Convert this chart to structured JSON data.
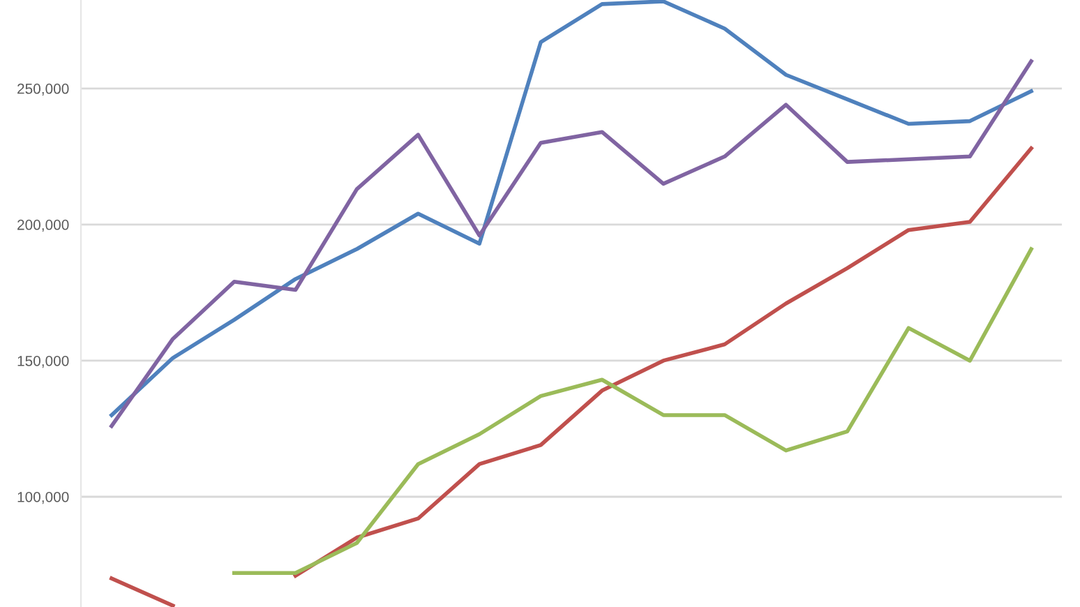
{
  "chart_data": {
    "type": "line",
    "categories": [
      null,
      null,
      null,
      null,
      null,
      null,
      null,
      null,
      null,
      null,
      null,
      null,
      null,
      null,
      null,
      null
    ],
    "series": [
      {
        "color": "#4f81bd",
        "values": [
          130000,
          151000,
          165000,
          180000,
          191000,
          204000,
          193000,
          267000,
          281000,
          282000,
          272000,
          255000,
          246000,
          237000,
          238000,
          249000
        ]
      },
      {
        "color": "#8064a2",
        "values": [
          126000,
          158000,
          179000,
          176000,
          213000,
          233000,
          196000,
          230000,
          234000,
          215000,
          225000,
          244000,
          223000,
          224000,
          225000,
          260000
        ]
      },
      {
        "color": "#c0504d",
        "values": [
          70000,
          60000,
          null,
          71000,
          85000,
          92000,
          112000,
          119000,
          139000,
          150000,
          156000,
          171000,
          184000,
          198000,
          201000,
          228000
        ]
      },
      {
        "color": "#9bbb59",
        "values": [
          null,
          null,
          72000,
          72000,
          83000,
          112000,
          123000,
          137000,
          143000,
          130000,
          130000,
          117000,
          124000,
          162000,
          150000,
          191000
        ]
      }
    ],
    "ylim": [
      59500,
      282500
    ],
    "yticks": [
      {
        "value": 100000,
        "label": "100,000"
      },
      {
        "value": 150000,
        "label": "150,000"
      },
      {
        "value": 200000,
        "label": "200,000"
      },
      {
        "value": 250000,
        "label": "250,000"
      }
    ],
    "grid": "y",
    "tick_labels": "y",
    "marker": "none",
    "line_style": "solid"
  }
}
